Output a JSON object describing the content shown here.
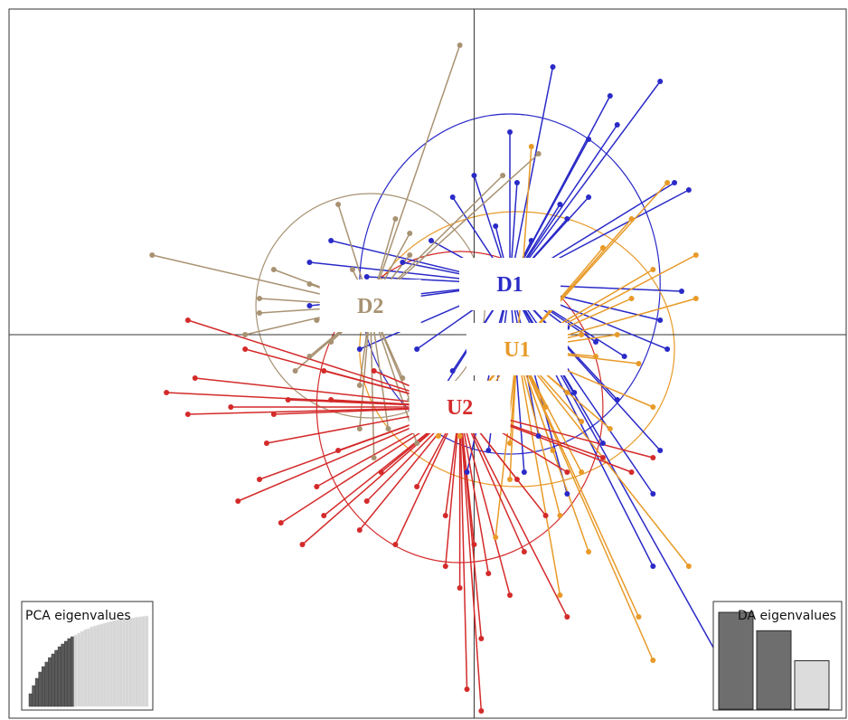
{
  "chart_data": {
    "type": "scatter",
    "title": "",
    "xlabel": "",
    "ylabel": "",
    "xlim": [
      -6.5,
      5.2
    ],
    "ylim": [
      -5.3,
      4.5
    ],
    "axes_cross": [
      0,
      0
    ],
    "grid": false,
    "groups": [
      {
        "name": "D1",
        "color": "#2a2ac8",
        "centroid": [
          0.5,
          0.7
        ],
        "ellipse": {
          "rx": 2.1,
          "ry": 2.35
        },
        "points": [
          [
            1.1,
            3.7
          ],
          [
            2.6,
            3.5
          ],
          [
            1.9,
            3.3
          ],
          [
            2.0,
            2.9
          ],
          [
            1.6,
            2.7
          ],
          [
            0.5,
            2.8
          ],
          [
            2.8,
            2.1
          ],
          [
            3.0,
            2.0
          ],
          [
            1.2,
            1.8
          ],
          [
            1.6,
            1.9
          ],
          [
            0.6,
            2.1
          ],
          [
            0.0,
            2.2
          ],
          [
            -0.3,
            1.9
          ],
          [
            0.8,
            1.3
          ],
          [
            1.3,
            1.6
          ],
          [
            0.3,
            1.5
          ],
          [
            -0.6,
            1.3
          ],
          [
            -1.0,
            1.0
          ],
          [
            -2.0,
            1.3
          ],
          [
            -2.3,
            1.0
          ],
          [
            -1.5,
            0.8
          ],
          [
            -2.3,
            0.4
          ],
          [
            -1.0,
            0.5
          ],
          [
            2.9,
            0.6
          ],
          [
            2.6,
            0.2
          ],
          [
            2.7,
            -0.2
          ],
          [
            2.1,
            -0.3
          ],
          [
            1.7,
            -0.1
          ],
          [
            1.3,
            0.1
          ],
          [
            -0.8,
            -0.2
          ],
          [
            -1.6,
            -0.2
          ],
          [
            -0.3,
            -0.5
          ],
          [
            0.2,
            -0.4
          ],
          [
            -0.6,
            -1.0
          ],
          [
            1.4,
            -0.8
          ],
          [
            2.0,
            -0.9
          ],
          [
            1.8,
            -1.5
          ],
          [
            0.9,
            -1.4
          ],
          [
            0.2,
            -1.6
          ],
          [
            -0.1,
            -1.9
          ],
          [
            0.7,
            -1.9
          ],
          [
            1.3,
            -2.2
          ],
          [
            2.5,
            -2.2
          ],
          [
            2.6,
            -1.6
          ],
          [
            2.5,
            -3.2
          ],
          [
            3.5,
            -4.6
          ]
        ]
      },
      {
        "name": "D2",
        "color": "#a89272",
        "centroid": [
          -1.45,
          0.4
        ],
        "ellipse": {
          "rx": 1.6,
          "ry": 1.55
        },
        "points": [
          [
            -0.2,
            4.0
          ],
          [
            0.9,
            2.5
          ],
          [
            0.4,
            2.2
          ],
          [
            -1.9,
            1.8
          ],
          [
            -1.1,
            1.6
          ],
          [
            -0.9,
            1.4
          ],
          [
            -0.9,
            1.1
          ],
          [
            -4.5,
            1.1
          ],
          [
            -2.8,
            0.9
          ],
          [
            -1.7,
            0.9
          ],
          [
            -2.3,
            0.7
          ],
          [
            -3.0,
            0.5
          ],
          [
            -3.0,
            0.3
          ],
          [
            -2.2,
            0.2
          ],
          [
            -3.2,
            0.0
          ],
          [
            -2.3,
            -0.3
          ],
          [
            -1.6,
            -0.7
          ],
          [
            -1.0,
            -0.6
          ],
          [
            -2.0,
            -0.1
          ],
          [
            -0.9,
            -0.9
          ],
          [
            -2.5,
            -0.5
          ],
          [
            -1.2,
            -1.3
          ],
          [
            -1.6,
            -1.3
          ],
          [
            -0.8,
            -1.5
          ],
          [
            -1.4,
            -1.7
          ]
        ]
      },
      {
        "name": "U1",
        "color": "#e89a28",
        "centroid": [
          0.6,
          -0.2
        ],
        "ellipse": {
          "rx": 2.2,
          "ry": 1.9
        },
        "points": [
          [
            0.8,
            2.6
          ],
          [
            2.7,
            2.1
          ],
          [
            2.2,
            1.6
          ],
          [
            1.8,
            1.2
          ],
          [
            3.1,
            1.1
          ],
          [
            2.5,
            0.9
          ],
          [
            3.1,
            0.5
          ],
          [
            2.2,
            0.5
          ],
          [
            2.0,
            0.0
          ],
          [
            1.5,
            0.0
          ],
          [
            1.7,
            -0.3
          ],
          [
            2.3,
            -0.4
          ],
          [
            1.3,
            -0.8
          ],
          [
            2.5,
            -1.0
          ],
          [
            1.5,
            -1.2
          ],
          [
            1.0,
            -1.0
          ],
          [
            1.9,
            -1.3
          ],
          [
            0.5,
            -1.5
          ],
          [
            1.1,
            -1.6
          ],
          [
            -0.2,
            -1.4
          ],
          [
            1.5,
            -1.9
          ],
          [
            0.5,
            -2.0
          ],
          [
            1.2,
            -2.5
          ],
          [
            1.6,
            -3.0
          ],
          [
            0.3,
            -2.8
          ],
          [
            1.2,
            -3.6
          ],
          [
            2.3,
            -3.9
          ],
          [
            2.5,
            -4.5
          ],
          [
            -0.5,
            -1.4
          ],
          [
            -0.1,
            -1.0
          ],
          [
            3.0,
            -3.2
          ]
        ]
      },
      {
        "name": "U2",
        "color": "#d42a2a",
        "centroid": [
          -0.2,
          -1.0
        ],
        "ellipse": {
          "rx": 2.0,
          "ry": 2.15
        },
        "points": [
          [
            -3.2,
            -0.2
          ],
          [
            -2.6,
            -0.9
          ],
          [
            -1.9,
            -1.6
          ],
          [
            -2.8,
            -1.1
          ],
          [
            -2.9,
            -1.5
          ],
          [
            -3.0,
            -2.0
          ],
          [
            -2.7,
            -2.6
          ],
          [
            -3.3,
            -2.3
          ],
          [
            -2.1,
            -2.5
          ],
          [
            -1.5,
            -2.3
          ],
          [
            -2.2,
            -2.1
          ],
          [
            -1.6,
            -2.7
          ],
          [
            -2.4,
            -2.9
          ],
          [
            -0.8,
            -2.1
          ],
          [
            -1.1,
            -2.9
          ],
          [
            -0.4,
            -2.5
          ],
          [
            -0.4,
            -3.2
          ],
          [
            -0.2,
            -3.5
          ],
          [
            0.0,
            -2.9
          ],
          [
            0.2,
            -3.3
          ],
          [
            0.5,
            -3.6
          ],
          [
            0.1,
            -4.2
          ],
          [
            -0.1,
            -4.9
          ],
          [
            0.1,
            -5.2
          ],
          [
            1.3,
            -3.9
          ],
          [
            0.7,
            -3.0
          ],
          [
            1.0,
            -2.5
          ],
          [
            1.3,
            -1.9
          ],
          [
            1.8,
            -1.7
          ],
          [
            2.2,
            -1.9
          ],
          [
            2.5,
            -1.7
          ],
          [
            -2.1,
            -0.5
          ],
          [
            -2.0,
            -0.9
          ],
          [
            -1.4,
            -0.5
          ],
          [
            -1.3,
            -1.9
          ],
          [
            -0.7,
            -1.3
          ],
          [
            -3.9,
            -0.6
          ],
          [
            -4.0,
            -1.1
          ],
          [
            -4.3,
            -0.8
          ],
          [
            -4.0,
            0.2
          ],
          [
            -3.4,
            -1.0
          ],
          [
            0.6,
            -2.0
          ]
        ]
      }
    ],
    "insets": [
      {
        "name": "pca",
        "title": "PCA eigenvalues",
        "type": "bar",
        "retained": 14,
        "values": [
          0.14,
          0.23,
          0.31,
          0.38,
          0.44,
          0.49,
          0.54,
          0.58,
          0.62,
          0.66,
          0.69,
          0.72,
          0.75,
          0.77,
          0.79,
          0.81,
          0.83,
          0.85,
          0.86,
          0.88,
          0.89,
          0.9,
          0.91,
          0.92,
          0.93,
          0.94,
          0.95,
          0.955,
          0.96,
          0.965,
          0.97,
          0.975,
          0.98,
          0.985,
          0.99,
          0.995,
          1.0
        ]
      },
      {
        "name": "da",
        "title": "DA eigenvalues",
        "type": "bar",
        "retained": 2,
        "values": [
          1.0,
          0.81,
          0.5
        ]
      }
    ]
  }
}
